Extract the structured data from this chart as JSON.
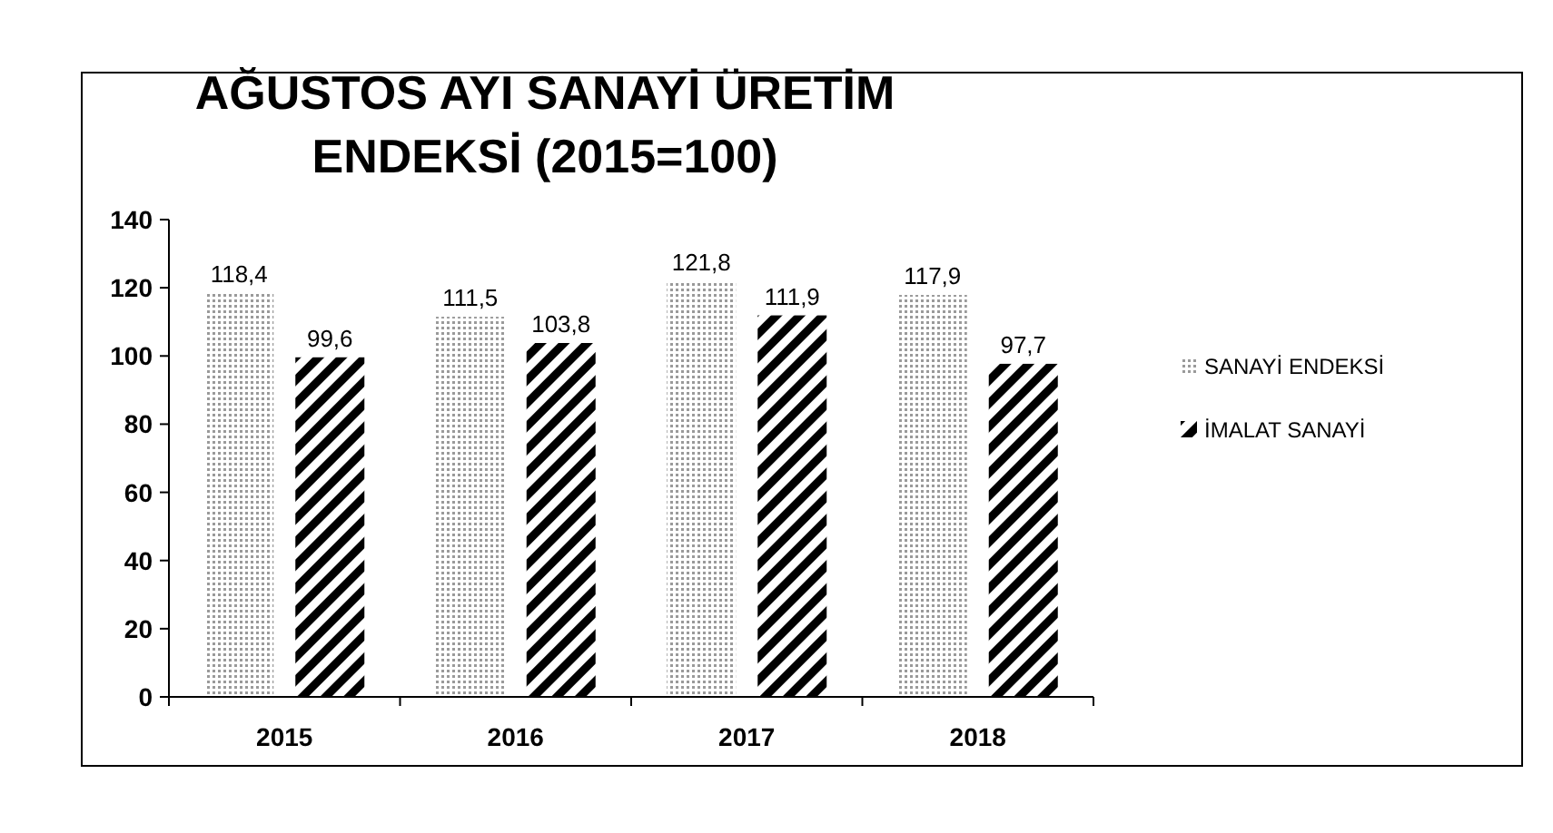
{
  "chart_data": {
    "type": "bar",
    "title": "AĞUSTOS AYI SANAYİ ÜRETİM ENDEKSİ (2015=100)",
    "categories": [
      "2015",
      "2016",
      "2017",
      "2018"
    ],
    "series": [
      {
        "name": "SANAYİ ENDEKSİ",
        "color": "#9a9a9a",
        "values": [
          118.4,
          111.5,
          121.8,
          117.9
        ],
        "value_labels": [
          "118,4",
          "111,5",
          "121,8",
          "117,9"
        ]
      },
      {
        "name": "İMALAT SANAYİ",
        "color": "#000000",
        "values": [
          99.6,
          103.8,
          111.9,
          97.7
        ],
        "value_labels": [
          "99,6",
          "103,8",
          "111,9",
          "97,7"
        ]
      }
    ],
    "ylim": [
      0,
      140
    ],
    "yticks": [
      0,
      20,
      40,
      60,
      80,
      100,
      120,
      140
    ],
    "grid": false,
    "legend": "right"
  }
}
